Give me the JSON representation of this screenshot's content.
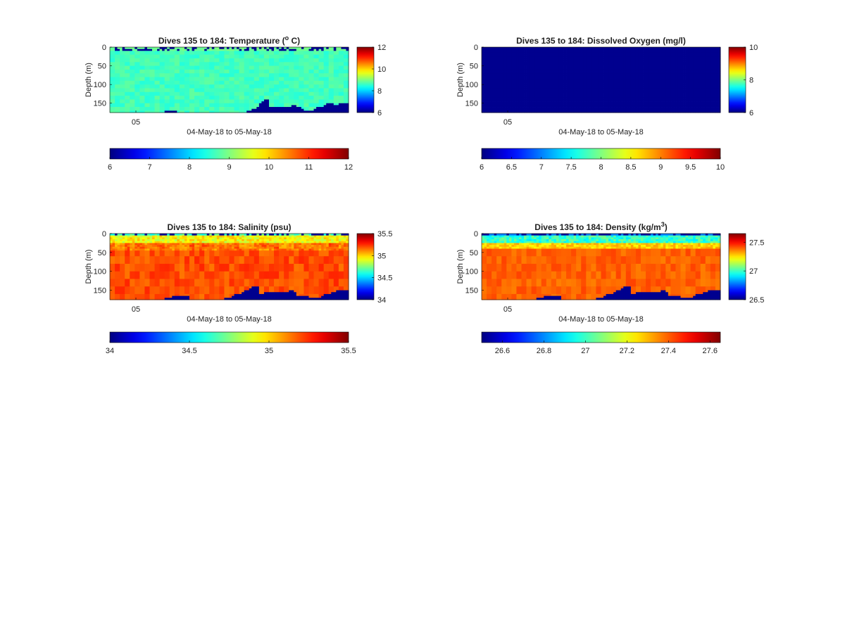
{
  "chart_data": [
    {
      "type": "heatmap",
      "title": "Dives 135 to 184: Temperature (",
      "title_sup": "o",
      "title_end": " C)",
      "ylabel": "Depth (m)",
      "xlabel": "04-May-18 to 05-May-18",
      "x_tick_labels": [
        "05"
      ],
      "y_ticks": [
        0,
        50,
        100,
        150
      ],
      "ylim": [
        0,
        175
      ],
      "field": "temperature",
      "clim": [
        6,
        12
      ],
      "side_colorbar_ticks": [
        6,
        8,
        10,
        12
      ],
      "side_colorbar_tick_labels": [
        "6",
        "8",
        "10",
        "12"
      ],
      "bottom_colorbar_ticks": [
        6,
        7,
        8,
        9,
        10,
        11,
        12
      ],
      "bottom_colorbar_tick_labels": [
        "6",
        "7",
        "8",
        "9",
        "10",
        "11",
        "12"
      ],
      "n_dives": 50,
      "bottom_depth_m": [
        175,
        175,
        175,
        175,
        175,
        175,
        175,
        175,
        175,
        175,
        175,
        175,
        175,
        175,
        175,
        175,
        175,
        175,
        175,
        175,
        175,
        175,
        172,
        170,
        168,
        169,
        170,
        175,
        175,
        175,
        175,
        175,
        175,
        175,
        175,
        175,
        175,
        175,
        175,
        175,
        175,
        175,
        175,
        175,
        175,
        175,
        175,
        175,
        175,
        175,
        175,
        175,
        175,
        175,
        175,
        170,
        168,
        165,
        163,
        160,
        152,
        145,
        138,
        140,
        160,
        162,
        158,
        160,
        158,
        158,
        158,
        158,
        158,
        157,
        157,
        158,
        160,
        165,
        170,
        170,
        172,
        172,
        165,
        160,
        162,
        160,
        155,
        150,
        150,
        152,
        155,
        153,
        150,
        150,
        150,
        150
      ]
    },
    {
      "type": "heatmap",
      "title": "Dives 135 to 184: Dissolved Oxygen (mg/l)",
      "title_sup": "",
      "title_end": "",
      "ylabel": "Depth (m)",
      "xlabel": "04-May-18 to 05-May-18",
      "x_tick_labels": [
        "05"
      ],
      "y_ticks": [
        0,
        50,
        100,
        150
      ],
      "ylim": [
        0,
        175
      ],
      "field": "uniform_low",
      "clim": [
        6,
        10
      ],
      "side_colorbar_ticks": [
        6,
        8,
        10
      ],
      "side_colorbar_tick_labels": [
        "6",
        "8",
        "10"
      ],
      "bottom_colorbar_ticks": [
        6,
        6.5,
        7,
        7.5,
        8,
        8.5,
        9,
        9.5,
        10
      ],
      "bottom_colorbar_tick_labels": [
        "6",
        "6.5",
        "7",
        "7.5",
        "8",
        "8.5",
        "9",
        "9.5",
        "10"
      ],
      "n_dives": 50,
      "bottom_depth_m": []
    },
    {
      "type": "heatmap",
      "title": "Dives 135 to 184: Salinity (psu)",
      "title_sup": "",
      "title_end": "",
      "ylabel": "Depth (m)",
      "xlabel": "04-May-18 to 05-May-18",
      "x_tick_labels": [
        "05"
      ],
      "y_ticks": [
        0,
        50,
        100,
        150
      ],
      "ylim": [
        0,
        175
      ],
      "field": "salinity",
      "clim": [
        34,
        35.5
      ],
      "side_colorbar_ticks": [
        34,
        34.5,
        35,
        35.5
      ],
      "side_colorbar_tick_labels": [
        "34",
        "34.5",
        "35",
        "35.5"
      ],
      "bottom_colorbar_ticks": [
        34,
        34.5,
        35,
        35.5
      ],
      "bottom_colorbar_tick_labels": [
        "34",
        "34.5",
        "35",
        "35.5"
      ],
      "n_dives": 50,
      "bottom_depth_m": [
        175,
        175,
        175,
        175,
        175,
        175,
        175,
        175,
        175,
        175,
        175,
        175,
        175,
        175,
        175,
        175,
        175,
        175,
        175,
        175,
        175,
        175,
        172,
        170,
        168,
        165,
        163,
        165,
        165,
        163,
        165,
        165,
        175,
        175,
        175,
        175,
        175,
        175,
        175,
        175,
        175,
        175,
        175,
        175,
        175,
        175,
        172,
        170,
        168,
        165,
        162,
        160,
        160,
        155,
        150,
        148,
        145,
        140,
        138,
        140,
        160,
        158,
        155,
        155,
        153,
        155,
        155,
        155,
        153,
        155,
        155,
        153,
        150,
        150,
        155,
        165,
        165,
        165,
        163,
        165,
        168,
        170,
        172,
        170,
        168,
        165,
        162,
        160,
        158,
        155,
        153,
        150,
        150,
        150,
        150,
        150
      ]
    },
    {
      "type": "heatmap",
      "title": "Dives 135 to 184: Density (kg/m",
      "title_sup": "3",
      "title_end": ")",
      "ylabel": "Depth (m)",
      "xlabel": "04-May-18 to 05-May-18",
      "x_tick_labels": [
        "05"
      ],
      "y_ticks": [
        0,
        50,
        100,
        150
      ],
      "ylim": [
        0,
        175
      ],
      "field": "density",
      "clim": [
        26.5,
        27.65
      ],
      "side_colorbar_ticks": [
        26.5,
        27,
        27.5
      ],
      "side_colorbar_tick_labels": [
        "26.5",
        "27",
        "27.5"
      ],
      "bottom_colorbar_ticks": [
        26.6,
        26.8,
        27,
        27.2,
        27.4,
        27.6
      ],
      "bottom_colorbar_tick_labels": [
        "26.6",
        "26.8",
        "27",
        "27.2",
        "27.4",
        "27.6"
      ],
      "n_dives": 50,
      "bottom_depth_m": [
        175,
        175,
        175,
        175,
        175,
        175,
        175,
        175,
        175,
        175,
        175,
        175,
        175,
        175,
        175,
        175,
        175,
        175,
        175,
        175,
        175,
        175,
        172,
        170,
        168,
        165,
        163,
        165,
        165,
        163,
        165,
        165,
        175,
        175,
        175,
        175,
        175,
        175,
        175,
        175,
        175,
        175,
        175,
        175,
        175,
        175,
        172,
        170,
        168,
        165,
        162,
        160,
        160,
        155,
        150,
        148,
        145,
        140,
        138,
        140,
        160,
        158,
        155,
        155,
        153,
        155,
        155,
        155,
        153,
        155,
        155,
        153,
        150,
        150,
        155,
        165,
        165,
        165,
        163,
        165,
        168,
        170,
        172,
        170,
        168,
        165,
        162,
        160,
        158,
        155,
        153,
        150,
        150,
        150,
        150,
        150
      ]
    }
  ]
}
